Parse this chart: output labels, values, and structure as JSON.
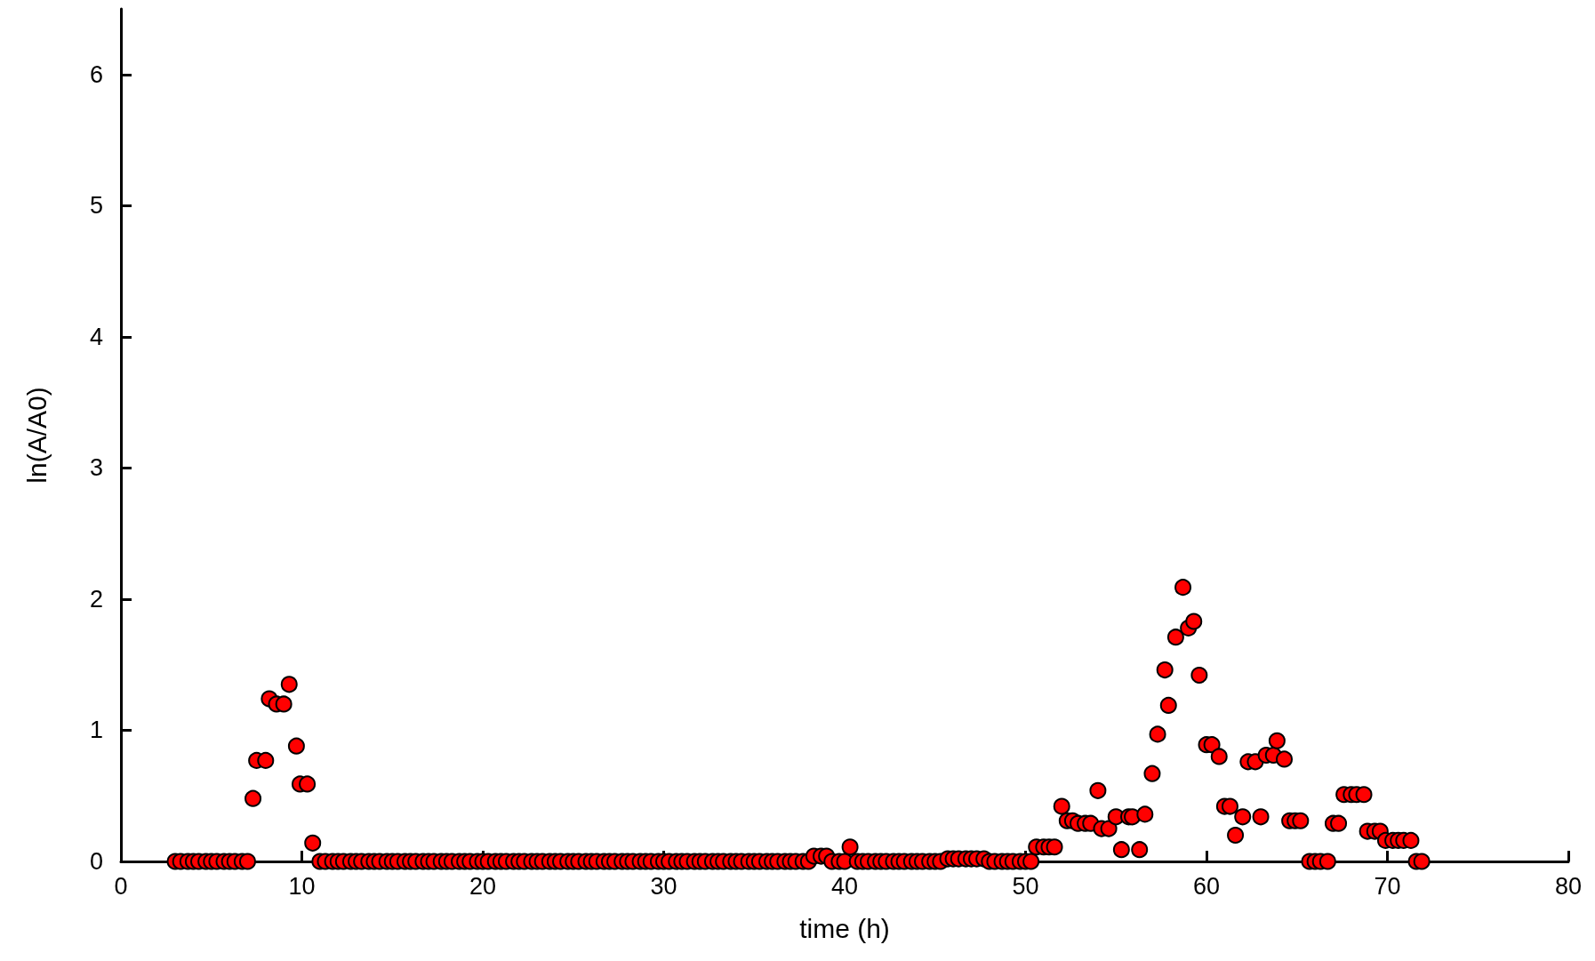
{
  "chart_data": {
    "type": "scatter",
    "xlabel": "time (h)",
    "ylabel": "ln(A/A0)",
    "xlim": [
      0,
      80
    ],
    "xticks": [
      0,
      10,
      20,
      30,
      40,
      50,
      60,
      70,
      80
    ],
    "ylim": [
      0,
      6.5
    ],
    "yticks": [
      0,
      1,
      2,
      3,
      4,
      5,
      6
    ],
    "grid": false,
    "marker": "circle",
    "series": [
      {
        "color": "#ff0000",
        "x": [
          3.0,
          3.3,
          3.7,
          4.0,
          4.3,
          4.7,
          5.0,
          5.3,
          5.7,
          6.0,
          6.3,
          6.7,
          7.0,
          7.3,
          7.5,
          8.0,
          8.2,
          8.6,
          9.0,
          9.3,
          9.7,
          9.9,
          10.3,
          10.6,
          11.0,
          11.3,
          11.7,
          12.0,
          12.3,
          12.7,
          13.0,
          13.3,
          13.7,
          14.0,
          14.3,
          14.7,
          15.0,
          15.3,
          15.7,
          16.0,
          16.3,
          16.7,
          17.0,
          17.3,
          17.7,
          18.0,
          18.3,
          18.7,
          19.0,
          19.3,
          19.7,
          20.0,
          20.3,
          20.7,
          21.0,
          21.3,
          21.7,
          22.0,
          22.3,
          22.7,
          23.0,
          23.3,
          23.7,
          24.0,
          24.3,
          24.7,
          25.0,
          25.3,
          25.7,
          26.0,
          26.3,
          26.7,
          27.0,
          27.3,
          27.7,
          28.0,
          28.3,
          28.7,
          29.0,
          29.3,
          29.7,
          30.0,
          30.3,
          30.7,
          31.0,
          31.3,
          31.7,
          32.0,
          32.3,
          32.7,
          33.0,
          33.3,
          33.7,
          34.0,
          34.3,
          34.7,
          35.0,
          35.3,
          35.7,
          36.0,
          36.3,
          36.7,
          37.0,
          37.3,
          37.7,
          38.0,
          38.3,
          38.7,
          39.0,
          39.3,
          39.7,
          40.0,
          40.3,
          40.7,
          41.0,
          41.3,
          41.7,
          42.0,
          42.3,
          42.7,
          43.0,
          43.3,
          43.7,
          44.0,
          44.3,
          44.7,
          45.0,
          45.3,
          45.7,
          46.0,
          46.3,
          46.7,
          47.0,
          47.3,
          47.7,
          48.0,
          48.3,
          48.7,
          49.0,
          49.3,
          49.7,
          50.0,
          50.3,
          50.6,
          51.0,
          51.3,
          51.6,
          52.0,
          52.3,
          52.6,
          52.9,
          53.3,
          53.6,
          54.0,
          54.2,
          54.6,
          55.0,
          55.3,
          55.7,
          55.9,
          56.3,
          56.6,
          57.0,
          57.3,
          57.7,
          57.9,
          58.3,
          58.7,
          59.0,
          59.3,
          59.6,
          60.0,
          60.3,
          60.7,
          61.0,
          61.3,
          61.6,
          62.0,
          62.3,
          62.7,
          63.0,
          63.3,
          63.7,
          63.9,
          64.3,
          64.6,
          64.9,
          65.2,
          65.7,
          66.0,
          66.3,
          66.7,
          67.0,
          67.3,
          67.6,
          68.0,
          68.3,
          68.7,
          68.9,
          69.3,
          69.6,
          69.9,
          70.3,
          70.6,
          70.9,
          71.3,
          71.6,
          71.9
        ],
        "values": [
          0,
          0,
          0,
          0,
          0,
          0,
          0,
          0,
          0,
          0,
          0,
          0,
          0,
          0.48,
          0.77,
          0.77,
          1.24,
          1.2,
          1.2,
          1.35,
          0.88,
          0.59,
          0.59,
          0.14,
          0,
          0,
          0,
          0,
          0,
          0,
          0,
          0,
          0,
          0,
          0,
          0,
          0,
          0,
          0,
          0,
          0,
          0,
          0,
          0,
          0,
          0,
          0,
          0,
          0,
          0,
          0,
          0,
          0,
          0,
          0,
          0,
          0,
          0,
          0,
          0,
          0,
          0,
          0,
          0,
          0,
          0,
          0,
          0,
          0,
          0,
          0,
          0,
          0,
          0,
          0,
          0,
          0,
          0,
          0,
          0,
          0,
          0,
          0,
          0,
          0,
          0,
          0,
          0,
          0,
          0,
          0,
          0,
          0,
          0,
          0,
          0,
          0,
          0,
          0,
          0,
          0,
          0,
          0,
          0,
          0,
          0,
          0.04,
          0.04,
          0.04,
          0,
          0,
          0,
          0.11,
          0,
          0,
          0,
          0,
          0,
          0,
          0,
          0,
          0,
          0,
          0,
          0,
          0,
          0,
          0,
          0.02,
          0.02,
          0.02,
          0.02,
          0.02,
          0.02,
          0.02,
          0,
          0,
          0,
          0,
          0,
          0,
          0,
          0,
          0.11,
          0.11,
          0.11,
          0.11,
          0.42,
          0.31,
          0.31,
          0.29,
          0.29,
          0.29,
          0.54,
          0.25,
          0.25,
          0.34,
          0.09,
          0.34,
          0.34,
          0.09,
          0.36,
          0.67,
          0.97,
          1.46,
          1.19,
          1.71,
          2.09,
          1.78,
          1.83,
          1.42,
          0.89,
          0.89,
          0.8,
          0.42,
          0.42,
          0.2,
          0.34,
          0.76,
          0.76,
          0.34,
          0.81,
          0.81,
          0.92,
          0.78,
          0.31,
          0.31,
          0.31,
          0,
          0,
          0,
          0,
          0.29,
          0.29,
          0.51,
          0.51,
          0.51,
          0.51,
          0.23,
          0.23,
          0.23,
          0.16,
          0.16,
          0.16,
          0.16,
          0.16,
          0,
          0
        ]
      }
    ]
  }
}
